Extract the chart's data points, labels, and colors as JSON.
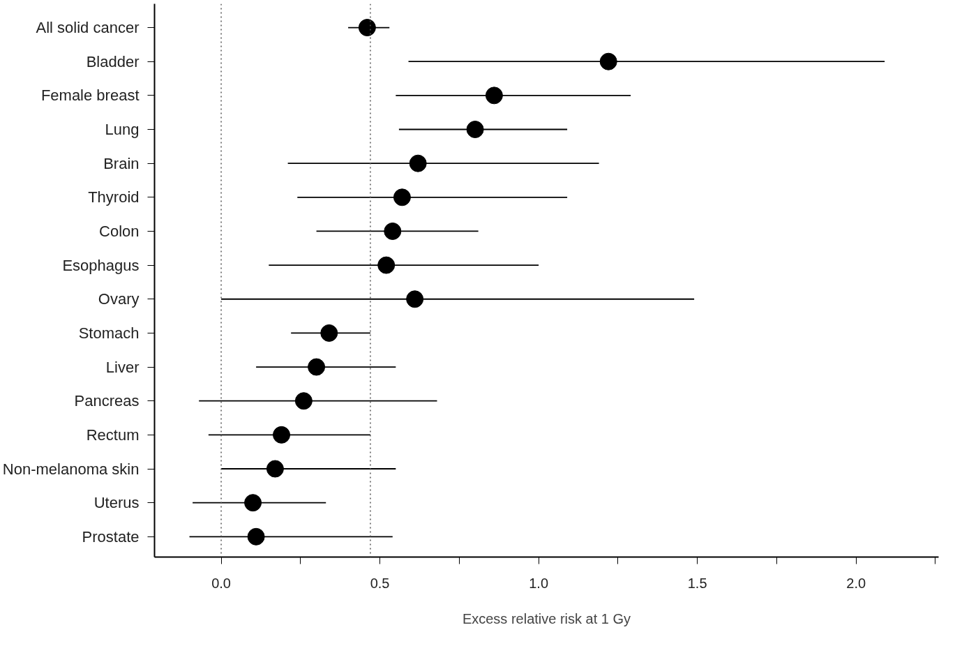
{
  "chart_data": {
    "type": "scatter",
    "orientation": "horizontal",
    "xlabel": "Excess relative risk at 1 Gy",
    "categories": [
      "All solid cancer",
      "Bladder",
      "Female breast",
      "Lung",
      "Brain",
      "Thyroid",
      "Colon",
      "Esophagus",
      "Ovary",
      "Stomach",
      "Liver",
      "Pancreas",
      "Rectum",
      "Non-melanoma skin",
      "Uterus",
      "Prostate"
    ],
    "color": "#000000",
    "values": [
      0.46,
      1.22,
      0.86,
      0.8,
      0.62,
      0.57,
      0.54,
      0.52,
      0.61,
      0.34,
      0.3,
      0.26,
      0.19,
      0.17,
      0.1,
      0.11
    ],
    "errors": [
      [
        0.4,
        0.53
      ],
      [
        0.59,
        2.09
      ],
      [
        0.55,
        1.29
      ],
      [
        0.56,
        1.09
      ],
      [
        0.21,
        1.19
      ],
      [
        0.24,
        1.09
      ],
      [
        0.3,
        0.81
      ],
      [
        0.15,
        1.0
      ],
      [
        0.0,
        1.49
      ],
      [
        0.22,
        0.47
      ],
      [
        0.11,
        0.55
      ],
      [
        -0.07,
        0.68
      ],
      [
        -0.04,
        0.47
      ],
      [
        0.0,
        0.55
      ],
      [
        -0.09,
        0.33
      ],
      [
        -0.1,
        0.54
      ]
    ],
    "xlim": [
      -0.21,
      2.26
    ],
    "xticks": [
      {
        "value": 0.0,
        "label": "0.0"
      },
      {
        "value": 0.25,
        "label": null
      },
      {
        "value": 0.5,
        "label": "0.5"
      },
      {
        "value": 0.75,
        "label": null
      },
      {
        "value": 1.0,
        "label": "1.0"
      },
      {
        "value": 1.25,
        "label": null
      },
      {
        "value": 1.5,
        "label": "1.5"
      },
      {
        "value": 1.75,
        "label": null
      },
      {
        "value": 2.0,
        "label": "2.0"
      },
      {
        "value": 2.25,
        "label": null
      }
    ],
    "ref_lines": [
      {
        "axis": "x",
        "value": 0.0,
        "color": "#555555",
        "line_style": "dotted"
      },
      {
        "axis": "x",
        "value": 0.47,
        "color": "#555555",
        "line_style": "dotted"
      }
    ],
    "grid": false,
    "marker": "circle"
  }
}
